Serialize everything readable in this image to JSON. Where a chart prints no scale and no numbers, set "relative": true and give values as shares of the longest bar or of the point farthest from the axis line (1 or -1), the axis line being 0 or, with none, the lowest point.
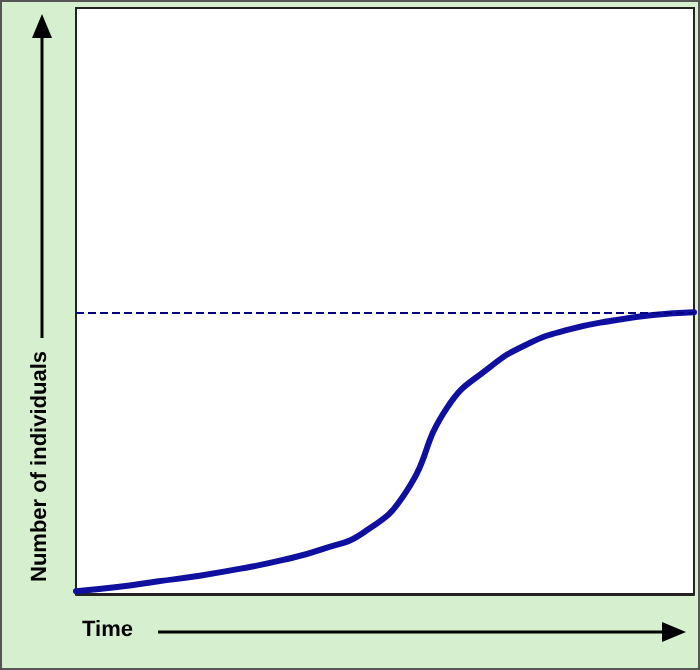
{
  "chart_data": {
    "type": "line",
    "relative": true,
    "xlabel": "Time",
    "ylabel": "Number of individuals",
    "categories": [
      null,
      null,
      null,
      null,
      null,
      null,
      null,
      null,
      null,
      null,
      null,
      null,
      null,
      null,
      null,
      null
    ],
    "series": [
      {
        "color": "#1010a0",
        "values": [
          0.01,
          0.025,
          0.045,
          0.065,
          0.09,
          0.12,
          0.16,
          0.22,
          0.36,
          0.66,
          0.8,
          0.89,
          0.94,
          0.97,
          0.99,
          1.0
        ]
      }
    ],
    "ref_lines": [
      {
        "axis": "y",
        "value": 1,
        "color": "#000080",
        "line_style": "dashed"
      }
    ],
    "marker": "none",
    "line_style": "solid",
    "grid": false
  }
}
